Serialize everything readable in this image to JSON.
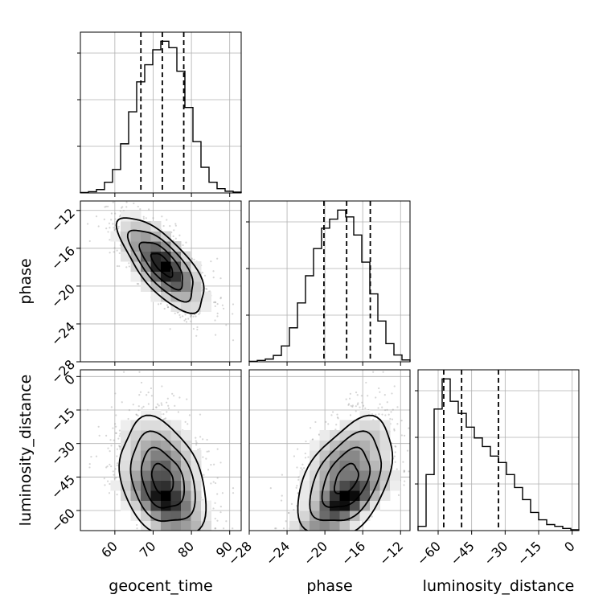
{
  "chart_data": {
    "type": "corner",
    "parameters": [
      "geocent_time",
      "phase",
      "luminosity_distance"
    ],
    "axis_labels": {
      "x": [
        "geocent_time",
        "phase",
        "luminosity_distance"
      ],
      "y": [
        "phase",
        "luminosity_distance"
      ]
    },
    "ranges": {
      "geocent_time": [
        51,
        93
      ],
      "phase": [
        -28,
        -11
      ],
      "luminosity_distance": [
        -69,
        3
      ]
    },
    "ticks": {
      "geocent_time": [
        60,
        70,
        80,
        90
      ],
      "phase": [
        -28,
        -24,
        -20,
        -16,
        -12
      ],
      "luminosity_distance": [
        -60,
        -45,
        -30,
        -15,
        0
      ]
    },
    "tick_labels": {
      "geocent_time": [
        "60",
        "70",
        "80",
        "90"
      ],
      "phase": [
        "−28",
        "−24",
        "−20",
        "−16",
        "−12"
      ],
      "luminosity_distance": [
        "−60",
        "−45",
        "−30",
        "−15",
        "0"
      ]
    },
    "y_tick_labels": {
      "phase": [
        "−12",
        "−16",
        "−20",
        "−24",
        "−28"
      ],
      "luminosity_distance": [
        "0",
        "−15",
        "−30",
        "−45",
        "−60"
      ]
    },
    "quantiles": {
      "geocent_time": [
        66.8,
        72.4,
        78.0
      ],
      "phase": [
        -20.1,
        -17.7,
        -15.2
      ],
      "luminosity_distance": [
        -57.5,
        -49.5,
        -33.0
      ]
    },
    "histograms": {
      "geocent_time": {
        "edges": [
          51.0,
          53.1,
          55.2,
          57.3,
          59.4,
          61.5,
          63.6,
          65.7,
          67.8,
          69.9,
          72.0,
          74.1,
          76.2,
          78.3,
          80.4,
          82.5,
          84.6,
          86.7,
          88.8,
          90.9,
          93.0
        ],
        "counts": [
          1,
          3,
          8,
          25,
          55,
          115,
          190,
          260,
          300,
          335,
          355,
          340,
          285,
          200,
          120,
          60,
          25,
          10,
          4,
          2
        ]
      },
      "phase": {
        "edges": [
          -28.0,
          -27.15,
          -26.3,
          -25.45,
          -24.6,
          -23.75,
          -22.9,
          -22.05,
          -21.2,
          -20.35,
          -19.5,
          -18.65,
          -17.8,
          -16.95,
          -16.1,
          -15.25,
          -14.4,
          -13.55,
          -12.7,
          -11.85,
          -11.0
        ],
        "counts": [
          1,
          3,
          6,
          14,
          35,
          75,
          130,
          190,
          250,
          295,
          315,
          335,
          320,
          280,
          220,
          150,
          90,
          40,
          15,
          4
        ]
      },
      "luminosity_distance": {
        "edges": [
          -69.0,
          -65.4,
          -61.8,
          -58.2,
          -54.6,
          -51.0,
          -47.4,
          -43.8,
          -40.2,
          -36.6,
          -33.0,
          -29.4,
          -25.8,
          -22.2,
          -18.6,
          -15.0,
          -11.4,
          -7.8,
          -4.2,
          -0.6,
          3.0
        ],
        "counts": [
          10,
          130,
          282,
          352,
          300,
          272,
          240,
          215,
          195,
          173,
          158,
          130,
          100,
          72,
          42,
          25,
          14,
          10,
          5,
          2
        ]
      }
    },
    "contour_levels": [
      0.5,
      1.0,
      1.5,
      2.0
    ],
    "colors": {
      "line": "#000000",
      "grid": "#b0b0b0",
      "scatter": "#8a8a8a"
    },
    "title": "",
    "legend": "none"
  }
}
